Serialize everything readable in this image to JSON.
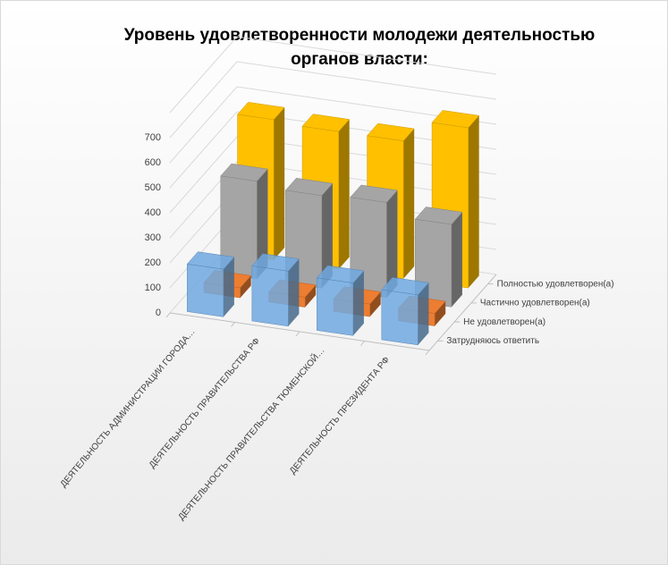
{
  "chart_data": {
    "type": "bar3d",
    "title": [
      "Уровень  удовлетворенности молодежи деятельностью",
      "органов власти:"
    ],
    "categories": [
      "ДЕЯТЕЛЬНОСТЬ  АДМИНИСТРАЦИИ  ГОРОДА…",
      "ДЕЯТЕЛЬНОСТЬ  ПРАВИТЕЛЬСТВА  РФ",
      "ДЕЯТЕЛЬНОСТЬ  ПРАВИТЕЛЬСТВА  ТЮМЕНСКОЙ…",
      "ДЕЯТЕЛЬНОСТЬ  ПРЕЗИДЕНТА  РФ"
    ],
    "series": [
      {
        "name": "Затрудняюсь ответить",
        "color": "#6fa8e0",
        "values": [
          190,
          220,
          210,
          200
        ]
      },
      {
        "name": "Не удовлетворен(а)",
        "color": "#ed7d31",
        "values": [
          40,
          40,
          50,
          50
        ]
      },
      {
        "name": "Частично удовлетворен(а)",
        "color": "#a5a5a5",
        "values": [
          390,
          370,
          380,
          330
        ]
      },
      {
        "name": "Полностью удовлетворен(а)",
        "color": "#ffc000",
        "values": [
          560,
          550,
          550,
          640
        ]
      }
    ],
    "ylim": [
      0,
      800
    ],
    "yticks": [
      0,
      100,
      200,
      300,
      400,
      500,
      600,
      700
    ],
    "grid": true
  }
}
